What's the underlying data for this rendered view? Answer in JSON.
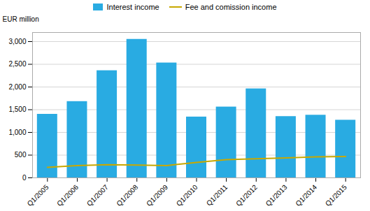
{
  "chart_data": {
    "type": "bar",
    "categories": [
      "Q1/2005",
      "Q1/2006",
      "Q1/2007",
      "Q1/2008",
      "Q1/2009",
      "Q1/2010",
      "Q1/2011",
      "Q1/2012",
      "Q1/2013",
      "Q1/2014",
      "Q1/2015"
    ],
    "series": [
      {
        "name": "Interest income",
        "type": "bar",
        "color": "#29ABE2",
        "values": [
          1400,
          1680,
          2360,
          3050,
          2530,
          1340,
          1560,
          1960,
          1350,
          1380,
          1270
        ]
      },
      {
        "name": "Fee and comission income",
        "type": "line",
        "color": "#C8A800",
        "values": [
          230,
          270,
          290,
          280,
          270,
          340,
          400,
          420,
          440,
          460,
          470
        ]
      }
    ],
    "ylabel": "EUR million",
    "ylim": [
      0,
      3200
    ],
    "yticks": [
      0,
      500,
      1000,
      1500,
      2000,
      2500,
      3000
    ],
    "grid": true,
    "legend": "top"
  }
}
